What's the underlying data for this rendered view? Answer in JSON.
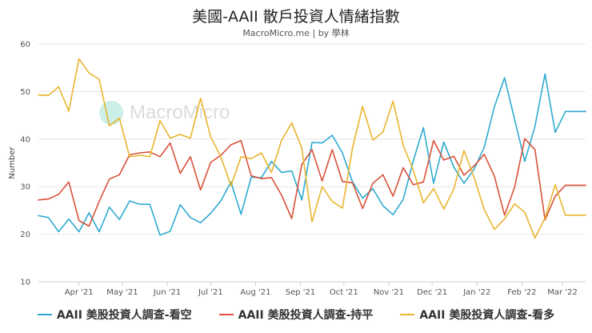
{
  "header": {
    "title": "美國-AAII 散戶投資人情緒指數",
    "subtitle": "MacroMicro.me | by 學林"
  },
  "watermark": {
    "text": "MacroMicro"
  },
  "chart_data": {
    "type": "line",
    "ylabel": "Number",
    "ylim": [
      10,
      60
    ],
    "yticks": [
      10,
      20,
      30,
      40,
      50,
      60
    ],
    "grid": "horizontal",
    "legend_placement": "bottom",
    "xlim": [
      "2021-03-04",
      "2022-03-17"
    ],
    "xticks": [
      {
        "date": "2021-04-01",
        "label": "Apr '21"
      },
      {
        "date": "2021-05-01",
        "label": "May '21"
      },
      {
        "date": "2021-06-01",
        "label": "Jun '21"
      },
      {
        "date": "2021-07-01",
        "label": "Jul '21"
      },
      {
        "date": "2021-08-01",
        "label": "Aug '21"
      },
      {
        "date": "2021-09-01",
        "label": "Sep '21"
      },
      {
        "date": "2021-10-01",
        "label": "Oct '21"
      },
      {
        "date": "2021-11-01",
        "label": "Nov '21"
      },
      {
        "date": "2021-12-01",
        "label": "Dec '21"
      },
      {
        "date": "2022-01-01",
        "label": "Jan '22"
      },
      {
        "date": "2022-02-01",
        "label": "Feb '22"
      },
      {
        "date": "2022-03-01",
        "label": "Mar '22"
      }
    ],
    "x": [
      "2021-03-04",
      "2021-03-11",
      "2021-03-18",
      "2021-03-25",
      "2021-04-01",
      "2021-04-08",
      "2021-04-15",
      "2021-04-22",
      "2021-04-29",
      "2021-05-06",
      "2021-05-13",
      "2021-05-20",
      "2021-05-27",
      "2021-06-03",
      "2021-06-10",
      "2021-06-17",
      "2021-06-24",
      "2021-07-01",
      "2021-07-08",
      "2021-07-15",
      "2021-07-22",
      "2021-07-29",
      "2021-08-05",
      "2021-08-12",
      "2021-08-19",
      "2021-08-26",
      "2021-09-02",
      "2021-09-09",
      "2021-09-16",
      "2021-09-23",
      "2021-09-30",
      "2021-10-07",
      "2021-10-14",
      "2021-10-21",
      "2021-10-28",
      "2021-11-04",
      "2021-11-11",
      "2021-11-18",
      "2021-11-25",
      "2021-12-02",
      "2021-12-09",
      "2021-12-16",
      "2021-12-23",
      "2021-12-30",
      "2022-01-06",
      "2022-01-13",
      "2022-01-20",
      "2022-01-27",
      "2022-02-03",
      "2022-02-10",
      "2022-02-17",
      "2022-02-24",
      "2022-03-03",
      "2022-03-10",
      "2022-03-17"
    ],
    "series": [
      {
        "name": "AAII 美股投資人調查-看空",
        "color": "#2eaad0",
        "values": [
          23.9,
          23.5,
          20.5,
          23.2,
          20.5,
          24.5,
          20.5,
          25.7,
          23.1,
          27.0,
          26.3,
          26.3,
          19.8,
          20.6,
          26.2,
          23.5,
          22.4,
          24.4,
          27.0,
          31.0,
          24.2,
          32.0,
          31.9,
          35.3,
          33.0,
          33.3,
          27.2,
          39.3,
          39.2,
          40.8,
          37.1,
          31.0,
          27.6,
          29.6,
          26.0,
          24.1,
          27.3,
          35.5,
          42.4,
          30.7,
          39.4,
          34.1,
          30.7,
          33.7,
          38.3,
          46.8,
          52.9,
          44.1,
          35.3,
          42.7,
          53.7,
          41.4,
          45.8,
          45.8,
          45.8
        ]
      },
      {
        "name": "AAII 美股投資人調查-持平",
        "color": "#d9523a",
        "values": [
          27.2,
          27.4,
          28.4,
          31.0,
          22.9,
          21.7,
          26.9,
          31.6,
          32.5,
          36.7,
          37.1,
          37.3,
          36.3,
          39.2,
          32.8,
          36.3,
          29.3,
          35.1,
          36.6,
          38.8,
          39.7,
          32.3,
          31.7,
          31.9,
          28.2,
          23.3,
          34.7,
          37.8,
          31.2,
          37.8,
          31.1,
          30.8,
          25.4,
          30.7,
          32.5,
          28.0,
          34.0,
          30.4,
          31.0,
          39.7,
          35.6,
          36.4,
          32.4,
          34.4,
          36.8,
          32.2,
          24.0,
          29.9,
          40.1,
          37.8,
          23.0,
          28.0,
          30.3,
          30.3,
          30.3
        ]
      },
      {
        "name": "AAII 美股投資人調查-看多",
        "color": "#e8b52e",
        "values": [
          49.3,
          49.2,
          51.0,
          45.9,
          56.9,
          53.9,
          52.6,
          42.8,
          44.4,
          36.3,
          36.6,
          36.3,
          43.9,
          40.2,
          41.0,
          40.2,
          48.6,
          40.5,
          36.3,
          30.2,
          36.3,
          35.9,
          37.1,
          33.0,
          39.8,
          43.4,
          38.1,
          22.6,
          30.0,
          26.9,
          25.5,
          38.2,
          46.9,
          39.8,
          41.5,
          48.0,
          38.7,
          33.4,
          26.6,
          29.6,
          25.3,
          29.5,
          37.6,
          31.9,
          25.2,
          21.0,
          23.2,
          26.4,
          24.6,
          19.2,
          23.4,
          30.4,
          24.0,
          24.0,
          24.0
        ]
      }
    ]
  }
}
